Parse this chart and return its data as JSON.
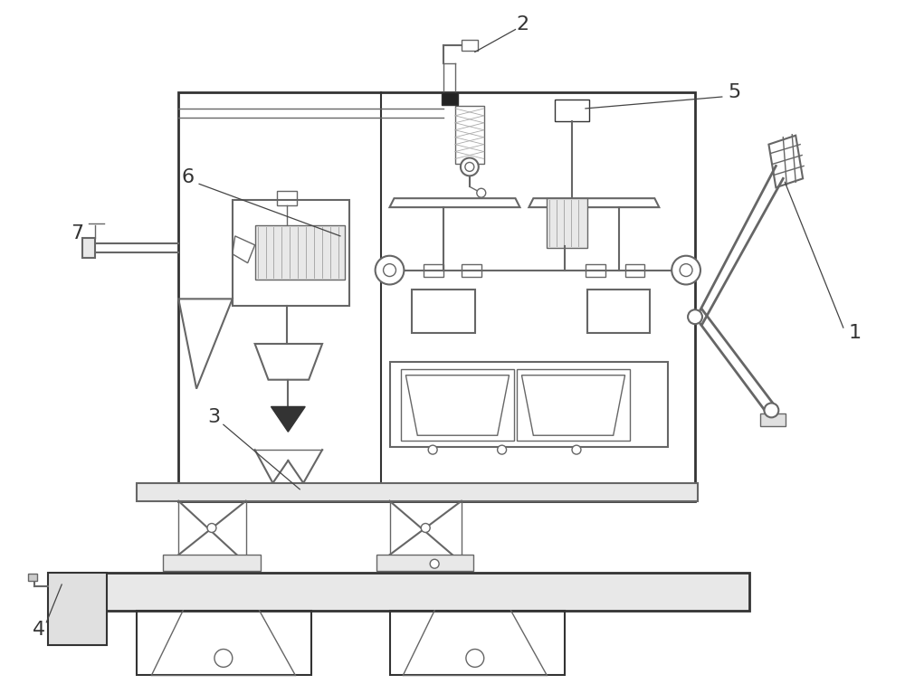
{
  "bg_color": "#ffffff",
  "lc": "#666666",
  "dc": "#333333",
  "fig_width": 10.0,
  "fig_height": 7.56,
  "dpi": 100
}
